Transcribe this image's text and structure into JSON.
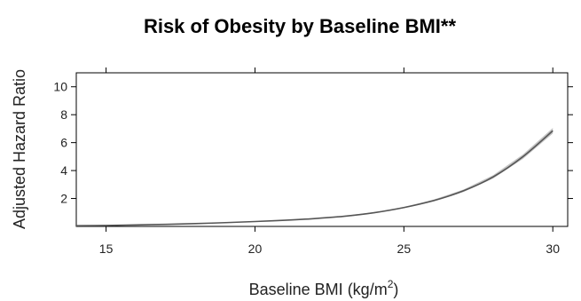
{
  "chart_data": {
    "type": "line",
    "title": "Risk of Obesity by Baseline BMI**",
    "xlabel": "Baseline BMI",
    "xlabel_units": "(kg/m",
    "xlabel_units_sup": "2",
    "xlabel_units_close": ")",
    "ylabel": "Adjusted Hazard Ratio",
    "xlim": [
      14,
      30.5
    ],
    "ylim": [
      0,
      11
    ],
    "xticks": [
      15,
      20,
      25,
      30
    ],
    "yticks": [
      2,
      4,
      6,
      8,
      10
    ],
    "series": [
      {
        "x": [
          14,
          15,
          16,
          17,
          18,
          19,
          20,
          21,
          22,
          23,
          24,
          25,
          26,
          27,
          28,
          29,
          30
        ],
        "y": [
          0.05,
          0.07,
          0.11,
          0.15,
          0.2,
          0.27,
          0.35,
          0.44,
          0.56,
          0.73,
          0.98,
          1.35,
          1.85,
          2.55,
          3.55,
          5.0,
          6.85
        ]
      }
    ],
    "ci_halfwidth": [
      0.01,
      0.01,
      0.01,
      0.01,
      0.01,
      0.01,
      0.02,
      0.02,
      0.02,
      0.03,
      0.04,
      0.05,
      0.07,
      0.09,
      0.12,
      0.16,
      0.2
    ],
    "colors": {
      "line": "#555555",
      "band": "#bdbdbd"
    }
  }
}
